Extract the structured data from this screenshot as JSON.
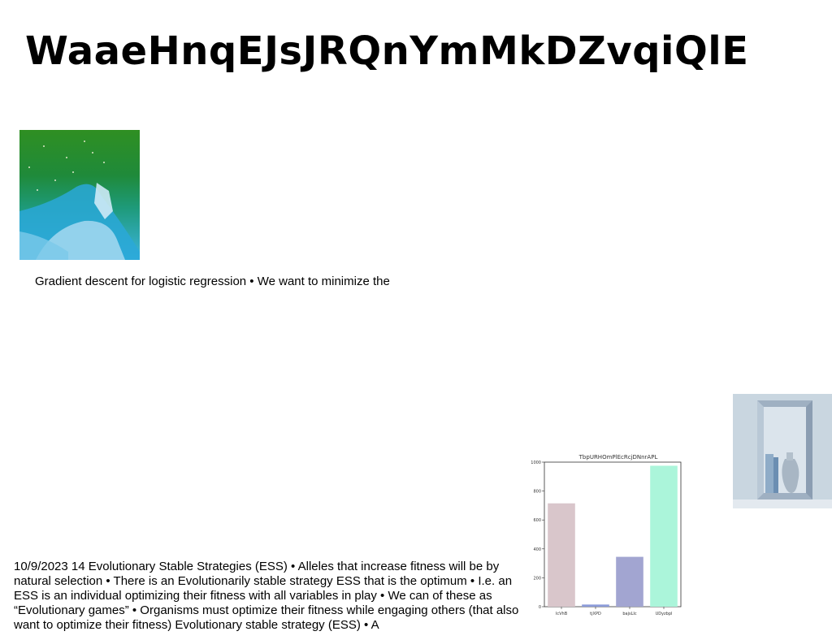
{
  "slide": {
    "title": "WaaeHnqEJsJRQnYmMkDZvqiQlE",
    "text_block_1": "Gradient descent for logistic regression • We want to minimize the",
    "text_block_2": "10/9/2023 14 Evolutionary Stable Strategies (ESS) • Alleles that increase fitness will be by natural selection • There is an Evolutionarily stable strategy ESS that is the optimum • I.e. an ESS is an individual optimizing their fitness with all variables in play • We can of these as “Evolutionary games” • Organisms must optimize their fitness while engaging others (that also want to optimize their fitness) Evolutionary stable strategy (ESS) • A"
  },
  "images": {
    "ocean_photo": "aerial ocean coastline photo",
    "niche_photo": "white niche with vases photo"
  },
  "chart_data": {
    "type": "bar",
    "title": "TbpURHOmPlEcRcjDNnrAPL",
    "categories": [
      "IcVhB",
      "tjXPD",
      "bajsLIc",
      "UDyzbpl"
    ],
    "values": [
      715,
      15,
      345,
      975
    ],
    "colors": [
      "#d9c6cb",
      "#8c9bd9",
      "#a2a5d1",
      "#abf5da"
    ],
    "ylim": [
      0,
      1000
    ],
    "yticks": [
      0,
      200,
      400,
      600,
      800,
      1000
    ],
    "xlabel": "",
    "ylabel": "",
    "grid": false
  }
}
